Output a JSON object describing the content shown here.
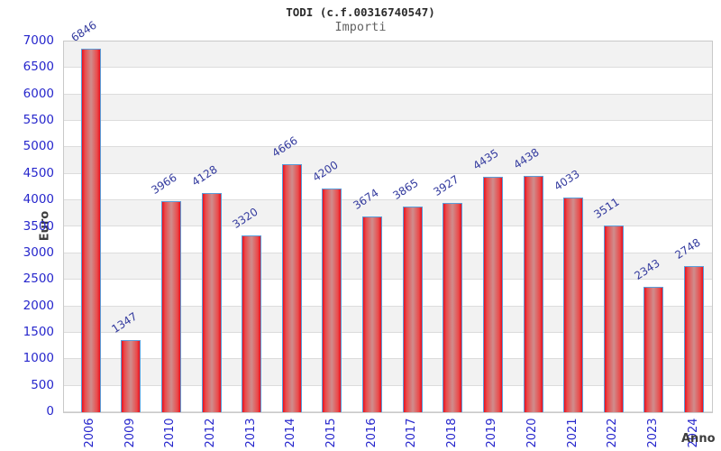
{
  "chart_data": {
    "type": "bar",
    "title": "TODI (c.f.00316740547)",
    "subtitle": "Importi",
    "xlabel": "Anno",
    "ylabel": "Euro",
    "categories": [
      "2006",
      "2009",
      "2010",
      "2012",
      "2013",
      "2014",
      "2015",
      "2016",
      "2017",
      "2018",
      "2019",
      "2020",
      "2021",
      "2022",
      "2023",
      "2024"
    ],
    "values": [
      6846,
      1347,
      3966,
      4128,
      3320,
      4666,
      4200,
      3674,
      3865,
      3927,
      4435,
      4438,
      4033,
      3511,
      2343,
      2748
    ],
    "ylim": [
      0,
      7000
    ],
    "ytick_step": 500,
    "yticks": [
      0,
      500,
      1000,
      1500,
      2000,
      2500,
      3000,
      3500,
      4000,
      4500,
      5000,
      5500,
      6000,
      6500,
      7000
    ],
    "grid": true,
    "legend_position": "none",
    "colors": {
      "band_gray": "#f2f2f2",
      "band_white": "#ffffff",
      "gridline": "#dcdcdc",
      "plot_border": "#c9c9c9",
      "bar_edge_red": "#e8101f",
      "bar_mid_red": "#e94c4c",
      "bar_center": "#cf8d8d",
      "bar_border": "#5b9dd9",
      "tick_label_blue": "#2626cc",
      "value_label_navy": "#333a9e",
      "axis_title_gray": "#3d3d3d",
      "title_color": "#2b2b2b",
      "subtitle_color": "#636363"
    }
  }
}
